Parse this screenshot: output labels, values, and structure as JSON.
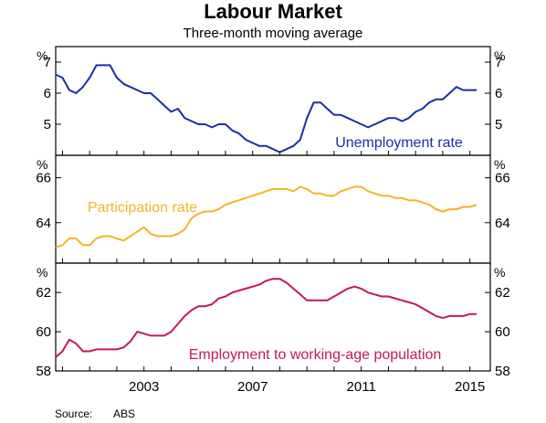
{
  "title": "Labour Market",
  "subtitle": "Three-month moving average",
  "source": {
    "label": "Source:",
    "value": "ABS"
  },
  "unit_label": "%",
  "x_axis": {
    "range": [
      1999.75,
      2015.75
    ],
    "ticks": [
      2003,
      2007,
      2011,
      2015
    ],
    "tick_labels": [
      "2003",
      "2007",
      "2011",
      "2015"
    ]
  },
  "colors": {
    "unemployment": "#1a2ea8",
    "participation": "#f5b324",
    "employment": "#c2185b"
  },
  "chart_data": [
    {
      "type": "line",
      "ylim": [
        4,
        7.5
      ],
      "y_ticks": [
        5,
        6,
        7
      ],
      "series": [
        {
          "name": "Unemployment rate",
          "x": [
            1999.75,
            2000.0,
            2000.25,
            2000.5,
            2000.75,
            2001.0,
            2001.25,
            2001.5,
            2001.75,
            2002.0,
            2002.25,
            2002.5,
            2002.75,
            2003.0,
            2003.25,
            2003.5,
            2003.75,
            2004.0,
            2004.25,
            2004.5,
            2004.75,
            2005.0,
            2005.25,
            2005.5,
            2005.75,
            2006.0,
            2006.25,
            2006.5,
            2006.75,
            2007.0,
            2007.25,
            2007.5,
            2007.75,
            2008.0,
            2008.25,
            2008.5,
            2008.75,
            2009.0,
            2009.25,
            2009.5,
            2009.75,
            2010.0,
            2010.25,
            2010.5,
            2010.75,
            2011.0,
            2011.25,
            2011.5,
            2011.75,
            2012.0,
            2012.25,
            2012.5,
            2012.75,
            2013.0,
            2013.25,
            2013.5,
            2013.75,
            2014.0,
            2014.25,
            2014.5,
            2014.75,
            2015.0,
            2015.25
          ],
          "values": [
            6.6,
            6.5,
            6.1,
            6.0,
            6.2,
            6.5,
            6.9,
            6.9,
            6.9,
            6.5,
            6.3,
            6.2,
            6.1,
            6.0,
            6.0,
            5.8,
            5.6,
            5.4,
            5.5,
            5.2,
            5.1,
            5.0,
            5.0,
            4.9,
            5.0,
            5.0,
            4.8,
            4.7,
            4.5,
            4.4,
            4.3,
            4.3,
            4.2,
            4.1,
            4.2,
            4.3,
            4.5,
            5.2,
            5.7,
            5.7,
            5.5,
            5.3,
            5.3,
            5.2,
            5.1,
            5.0,
            4.9,
            5.0,
            5.1,
            5.2,
            5.2,
            5.1,
            5.2,
            5.4,
            5.5,
            5.7,
            5.8,
            5.8,
            6.0,
            6.2,
            6.1,
            6.1,
            6.1
          ]
        }
      ]
    },
    {
      "type": "line",
      "ylim": [
        62.2,
        67
      ],
      "y_ticks": [
        64,
        66
      ],
      "series": [
        {
          "name": "Participation rate",
          "x": [
            1999.75,
            2000.0,
            2000.25,
            2000.5,
            2000.75,
            2001.0,
            2001.25,
            2001.5,
            2001.75,
            2002.0,
            2002.25,
            2002.5,
            2002.75,
            2003.0,
            2003.25,
            2003.5,
            2003.75,
            2004.0,
            2004.25,
            2004.5,
            2004.75,
            2005.0,
            2005.25,
            2005.5,
            2005.75,
            2006.0,
            2006.25,
            2006.5,
            2006.75,
            2007.0,
            2007.25,
            2007.5,
            2007.75,
            2008.0,
            2008.25,
            2008.5,
            2008.75,
            2009.0,
            2009.25,
            2009.5,
            2009.75,
            2010.0,
            2010.25,
            2010.5,
            2010.75,
            2011.0,
            2011.25,
            2011.5,
            2011.75,
            2012.0,
            2012.25,
            2012.5,
            2012.75,
            2013.0,
            2013.25,
            2013.5,
            2013.75,
            2014.0,
            2014.25,
            2014.5,
            2014.75,
            2015.0,
            2015.25
          ],
          "values": [
            62.9,
            63.0,
            63.3,
            63.3,
            63.0,
            63.0,
            63.3,
            63.4,
            63.4,
            63.3,
            63.2,
            63.4,
            63.6,
            63.8,
            63.5,
            63.4,
            63.4,
            63.4,
            63.5,
            63.7,
            64.2,
            64.4,
            64.5,
            64.5,
            64.6,
            64.8,
            64.9,
            65.0,
            65.1,
            65.2,
            65.3,
            65.4,
            65.5,
            65.5,
            65.5,
            65.4,
            65.6,
            65.5,
            65.3,
            65.3,
            65.2,
            65.2,
            65.4,
            65.5,
            65.6,
            65.6,
            65.4,
            65.3,
            65.2,
            65.2,
            65.1,
            65.1,
            65.0,
            65.0,
            64.9,
            64.8,
            64.6,
            64.5,
            64.6,
            64.6,
            64.7,
            64.7,
            64.8
          ]
        }
      ]
    },
    {
      "type": "line",
      "ylim": [
        58,
        63.5
      ],
      "y_ticks": [
        58,
        60,
        62
      ],
      "series": [
        {
          "name": "Employment to working-age population",
          "x": [
            1999.75,
            2000.0,
            2000.25,
            2000.5,
            2000.75,
            2001.0,
            2001.25,
            2001.5,
            2001.75,
            2002.0,
            2002.25,
            2002.5,
            2002.75,
            2003.0,
            2003.25,
            2003.5,
            2003.75,
            2004.0,
            2004.25,
            2004.5,
            2004.75,
            2005.0,
            2005.25,
            2005.5,
            2005.75,
            2006.0,
            2006.25,
            2006.5,
            2006.75,
            2007.0,
            2007.25,
            2007.5,
            2007.75,
            2008.0,
            2008.25,
            2008.5,
            2008.75,
            2009.0,
            2009.25,
            2009.5,
            2009.75,
            2010.0,
            2010.25,
            2010.5,
            2010.75,
            2011.0,
            2011.25,
            2011.5,
            2011.75,
            2012.0,
            2012.25,
            2012.5,
            2012.75,
            2013.0,
            2013.25,
            2013.5,
            2013.75,
            2014.0,
            2014.25,
            2014.5,
            2014.75,
            2015.0,
            2015.25
          ],
          "values": [
            58.7,
            59.0,
            59.6,
            59.4,
            59.0,
            59.0,
            59.1,
            59.1,
            59.1,
            59.1,
            59.2,
            59.5,
            60.0,
            59.9,
            59.8,
            59.8,
            59.8,
            60.0,
            60.4,
            60.8,
            61.1,
            61.3,
            61.3,
            61.4,
            61.7,
            61.8,
            62.0,
            62.1,
            62.2,
            62.3,
            62.4,
            62.6,
            62.7,
            62.7,
            62.5,
            62.2,
            61.9,
            61.6,
            61.6,
            61.6,
            61.6,
            61.8,
            62.0,
            62.2,
            62.3,
            62.2,
            62.0,
            61.9,
            61.8,
            61.8,
            61.7,
            61.6,
            61.5,
            61.4,
            61.2,
            61.0,
            60.8,
            60.7,
            60.8,
            60.8,
            60.8,
            60.9,
            60.9
          ]
        }
      ]
    }
  ]
}
